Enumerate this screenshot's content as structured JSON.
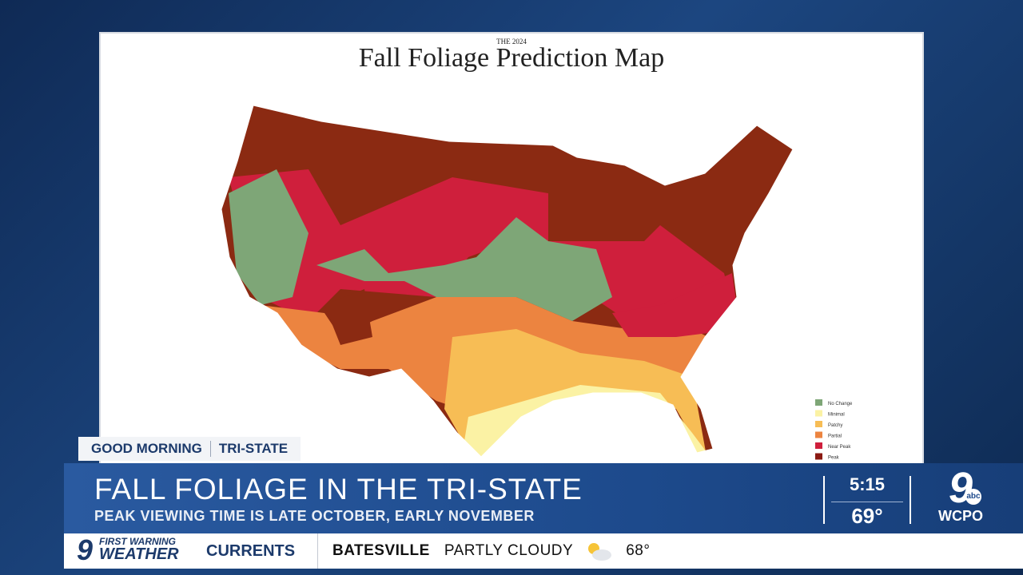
{
  "map": {
    "subtitle": "THE 2024",
    "title": "Fall Foliage Prediction Map",
    "legend": [
      {
        "label": "No Change",
        "color": "#7ea677"
      },
      {
        "label": "Minimal",
        "color": "#fbf2a4"
      },
      {
        "label": "Patchy",
        "color": "#f7bd55"
      },
      {
        "label": "Partial",
        "color": "#ec8440"
      },
      {
        "label": "Near Peak",
        "color": "#cf1f3c"
      },
      {
        "label": "Peak",
        "color": "#8b1a12"
      }
    ]
  },
  "tag": {
    "show": "GOOD MORNING",
    "region": "TRI-STATE"
  },
  "lower_third": {
    "headline": "FALL FOLIAGE IN THE TRI-STATE",
    "subhead": "PEAK VIEWING TIME IS LATE OCTOBER, EARLY NOVEMBER",
    "time": "5:15",
    "temperature": "69°"
  },
  "station": {
    "channel": "9",
    "network": "abc",
    "callsign": "WCPO"
  },
  "ticker": {
    "brand_top": "FIRST WARNING",
    "brand_bottom": "WEATHER",
    "section": "CURRENTS",
    "city": "BATESVILLE",
    "condition": "PARTLY CLOUDY",
    "temperature": "68°"
  }
}
